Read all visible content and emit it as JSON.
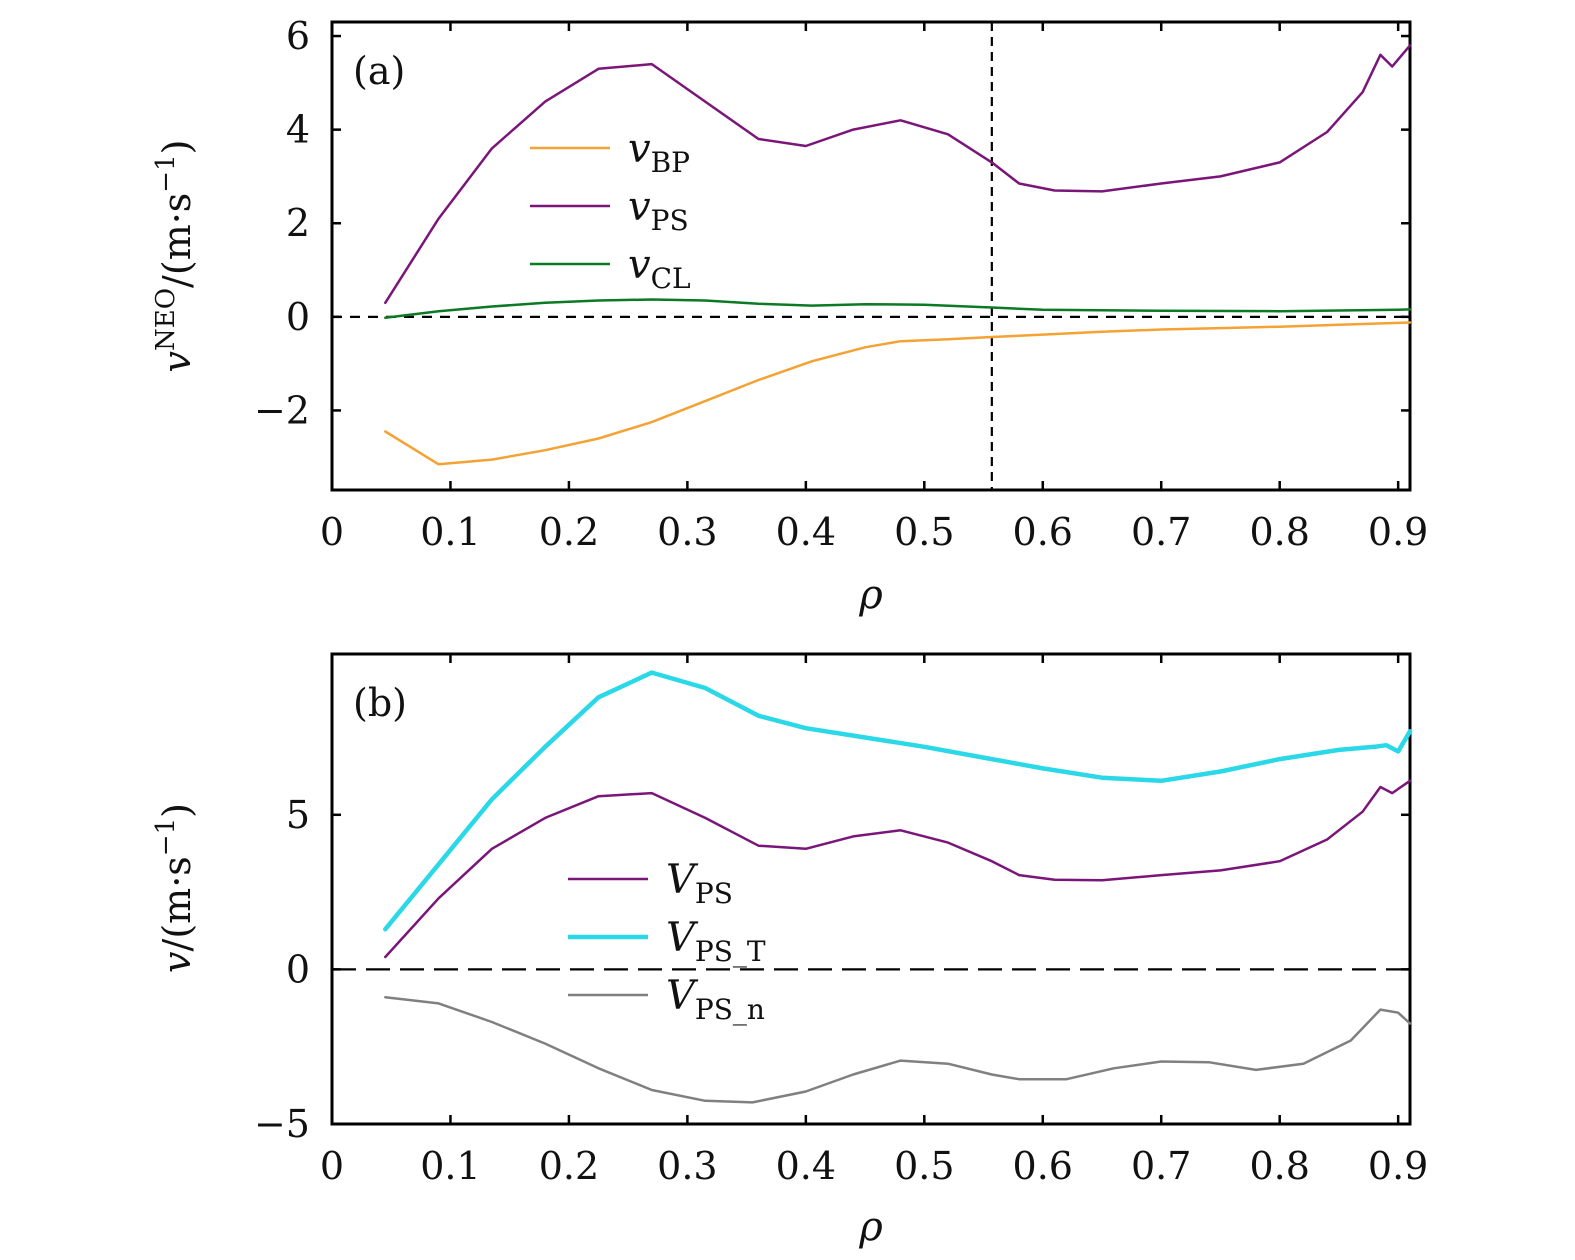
{
  "chart_data": [
    {
      "type": "line",
      "panel_label": "(a)",
      "xlabel": "ρ",
      "ylabel": "v^NEO/(m·s^-1)",
      "ylabel_base": "v",
      "ylabel_sup": "NEO",
      "ylabel_rest": "/(m·s",
      "ylabel_exp": "−1",
      "ylabel_close": ")",
      "xlim": [
        0,
        0.91
      ],
      "ylim": [
        -3.7,
        6.3
      ],
      "xticks": [
        0,
        0.1,
        0.2,
        0.3,
        0.4,
        0.5,
        0.6,
        0.7,
        0.8,
        0.9
      ],
      "xtick_labels": [
        "0",
        "0.1",
        "0.2",
        "0.3",
        "0.4",
        "0.5",
        "0.6",
        "0.7",
        "0.8",
        "0.9"
      ],
      "yticks": [
        -2,
        0,
        2,
        4,
        6
      ],
      "ytick_labels": [
        "−2",
        "0",
        "2",
        "4",
        "6"
      ],
      "hline_y": 0,
      "vline_x": 0.557,
      "legend_position": "upper-left",
      "series": [
        {
          "name": "v_BP",
          "label_main": "v",
          "label_sub": "BP",
          "color": "#f5a234",
          "width": 2.5,
          "x": [
            0.045,
            0.09,
            0.135,
            0.18,
            0.225,
            0.27,
            0.315,
            0.36,
            0.405,
            0.45,
            0.48,
            0.52,
            0.557,
            0.6,
            0.65,
            0.7,
            0.75,
            0.8,
            0.85,
            0.9,
            0.91
          ],
          "y": [
            -2.45,
            -3.15,
            -3.05,
            -2.85,
            -2.6,
            -2.25,
            -1.8,
            -1.35,
            -0.95,
            -0.65,
            -0.52,
            -0.48,
            -0.43,
            -0.38,
            -0.32,
            -0.27,
            -0.24,
            -0.21,
            -0.17,
            -0.13,
            -0.12
          ]
        },
        {
          "name": "v_PS",
          "label_main": "v",
          "label_sub": "PS",
          "color": "#7a1679",
          "width": 2.5,
          "x": [
            0.045,
            0.09,
            0.135,
            0.18,
            0.225,
            0.27,
            0.315,
            0.36,
            0.4,
            0.44,
            0.48,
            0.52,
            0.557,
            0.58,
            0.61,
            0.65,
            0.7,
            0.75,
            0.8,
            0.84,
            0.87,
            0.885,
            0.895,
            0.91
          ],
          "y": [
            0.3,
            2.1,
            3.6,
            4.6,
            5.3,
            5.4,
            4.6,
            3.8,
            3.65,
            4.0,
            4.2,
            3.9,
            3.3,
            2.85,
            2.7,
            2.68,
            2.85,
            3.0,
            3.3,
            3.95,
            4.8,
            5.6,
            5.35,
            5.8
          ]
        },
        {
          "name": "v_CL",
          "label_main": "v",
          "label_sub": "CL",
          "color": "#0c7a24",
          "width": 2.5,
          "x": [
            0.045,
            0.09,
            0.135,
            0.18,
            0.225,
            0.27,
            0.315,
            0.36,
            0.405,
            0.45,
            0.5,
            0.557,
            0.6,
            0.7,
            0.8,
            0.9,
            0.91
          ],
          "y": [
            -0.02,
            0.12,
            0.22,
            0.3,
            0.35,
            0.37,
            0.35,
            0.28,
            0.24,
            0.27,
            0.26,
            0.2,
            0.15,
            0.13,
            0.12,
            0.15,
            0.16
          ]
        }
      ]
    },
    {
      "type": "line",
      "panel_label": "(b)",
      "xlabel": "ρ",
      "ylabel": "v/(m·s^-1)",
      "ylabel_base": "v",
      "ylabel_sup": "",
      "ylabel_rest": "/(m·s",
      "ylabel_exp": "−1",
      "ylabel_close": ")",
      "xlim": [
        0,
        0.91
      ],
      "ylim": [
        -5,
        10.2
      ],
      "xticks": [
        0,
        0.1,
        0.2,
        0.3,
        0.4,
        0.5,
        0.6,
        0.7,
        0.8,
        0.9
      ],
      "xtick_labels": [
        "0",
        "0.1",
        "0.2",
        "0.3",
        "0.4",
        "0.5",
        "0.6",
        "0.7",
        "0.8",
        "0.9"
      ],
      "yticks": [
        -5,
        0,
        5
      ],
      "ytick_labels": [
        "−5",
        "0",
        "5"
      ],
      "hline_y": 0,
      "legend_position": "center-left",
      "series": [
        {
          "name": "V_PS",
          "label_main": "V",
          "label_sub": "PS",
          "color": "#7a1679",
          "width": 2.5,
          "x": [
            0.045,
            0.09,
            0.135,
            0.18,
            0.225,
            0.27,
            0.315,
            0.36,
            0.4,
            0.44,
            0.48,
            0.52,
            0.557,
            0.58,
            0.61,
            0.65,
            0.7,
            0.75,
            0.8,
            0.84,
            0.87,
            0.885,
            0.895,
            0.91
          ],
          "y": [
            0.4,
            2.3,
            3.9,
            4.9,
            5.6,
            5.7,
            4.9,
            4.0,
            3.9,
            4.3,
            4.5,
            4.1,
            3.5,
            3.05,
            2.9,
            2.88,
            3.05,
            3.2,
            3.5,
            4.2,
            5.1,
            5.9,
            5.7,
            6.1
          ]
        },
        {
          "name": "V_PS_T",
          "label_main": "V",
          "label_sub": "PS_T",
          "color": "#2ad8e8",
          "width": 4.5,
          "x": [
            0.045,
            0.09,
            0.135,
            0.18,
            0.225,
            0.27,
            0.315,
            0.36,
            0.4,
            0.45,
            0.5,
            0.55,
            0.6,
            0.65,
            0.7,
            0.75,
            0.8,
            0.85,
            0.88,
            0.89,
            0.9,
            0.91
          ],
          "y": [
            1.3,
            3.4,
            5.5,
            7.2,
            8.8,
            9.6,
            9.1,
            8.2,
            7.8,
            7.5,
            7.2,
            6.85,
            6.5,
            6.2,
            6.1,
            6.4,
            6.8,
            7.1,
            7.2,
            7.25,
            7.05,
            7.7
          ]
        },
        {
          "name": "V_PS_n",
          "label_main": "V",
          "label_sub": "PS_n",
          "color": "#808080",
          "width": 2.5,
          "x": [
            0.045,
            0.09,
            0.135,
            0.18,
            0.225,
            0.27,
            0.315,
            0.355,
            0.4,
            0.44,
            0.48,
            0.52,
            0.557,
            0.58,
            0.62,
            0.66,
            0.7,
            0.74,
            0.78,
            0.82,
            0.86,
            0.885,
            0.9,
            0.91
          ],
          "y": [
            -0.9,
            -1.1,
            -1.7,
            -2.4,
            -3.2,
            -3.9,
            -4.25,
            -4.3,
            -3.95,
            -3.4,
            -2.95,
            -3.05,
            -3.4,
            -3.55,
            -3.55,
            -3.2,
            -2.98,
            -3.0,
            -3.25,
            -3.05,
            -2.3,
            -1.3,
            -1.4,
            -1.75
          ]
        }
      ]
    }
  ]
}
